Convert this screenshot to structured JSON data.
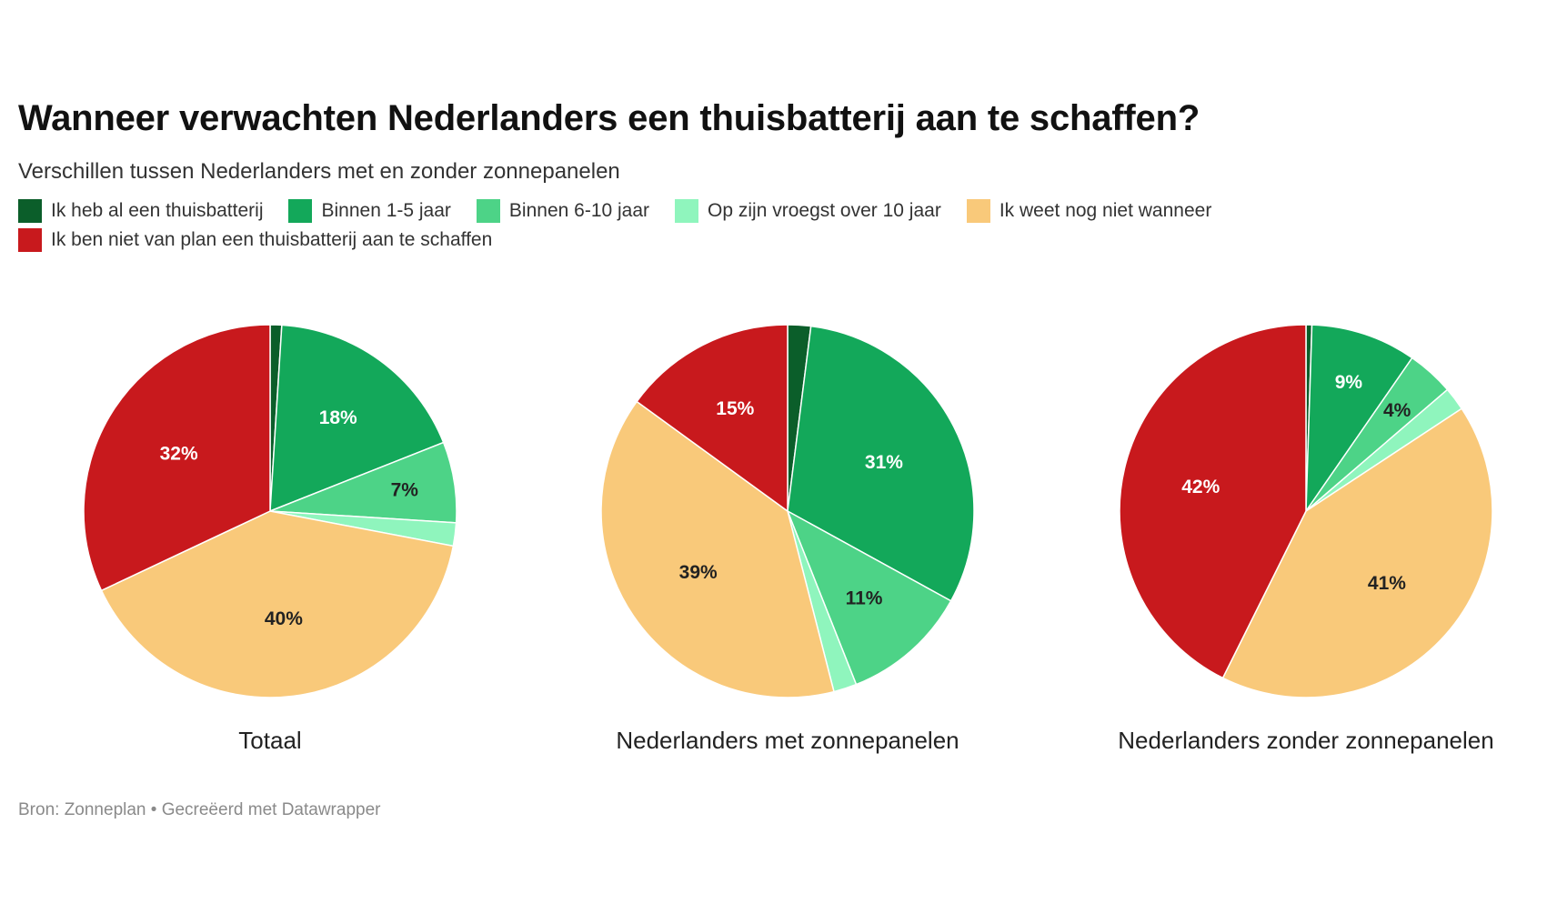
{
  "chart_data": {
    "type": "pie",
    "title": "Wanneer verwachten Nederlanders een thuisbatterij aan te schaffen?",
    "subtitle": "Verschillen tussen Nederlanders met en zonder zonnepanelen",
    "legend": [
      {
        "label": "Ik heb al een thuisbatterij",
        "color": "#0b5e2a"
      },
      {
        "label": "Binnen 1-5 jaar",
        "color": "#13a85a"
      },
      {
        "label": "Binnen 6-10 jaar",
        "color": "#4dd387"
      },
      {
        "label": "Op zijn vroegst over 10 jaar",
        "color": "#8ff5bd"
      },
      {
        "label": "Ik weet nog niet wanneer",
        "color": "#f9c97a"
      },
      {
        "label": "Ik ben niet van plan een thuisbatterij aan te schaffen",
        "color": "#c8191d"
      }
    ],
    "pies": [
      {
        "name": "Totaal",
        "values": [
          1,
          18,
          7,
          2,
          40,
          32
        ],
        "labels": [
          "",
          "18%",
          "7%",
          "",
          "40%",
          "32%"
        ]
      },
      {
        "name": "Nederlanders met zonnepanelen",
        "values": [
          2,
          31,
          11,
          2,
          39,
          15
        ],
        "labels": [
          "",
          "31%",
          "11%",
          "",
          "39%",
          "15%"
        ]
      },
      {
        "name": "Nederlanders zonder zonnepanelen",
        "values": [
          0.5,
          9,
          4,
          2,
          41,
          42
        ],
        "labels": [
          "",
          "9%",
          "4%",
          "",
          "41%",
          "42%"
        ]
      }
    ]
  },
  "source": "Bron: Zonneplan • Gecreëerd met Datawrapper"
}
